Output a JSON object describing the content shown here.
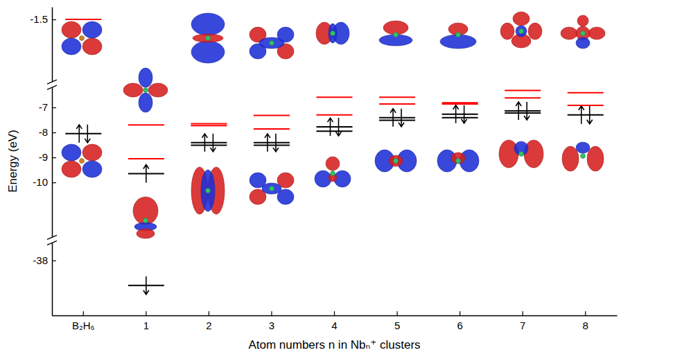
{
  "chart_data": {
    "type": "energy_levels",
    "x_label": "Atom numbers n in Nbₙ⁺ clusters",
    "y_label": "Energy (eV)",
    "categories": [
      "B₂H₆",
      "1",
      "2",
      "3",
      "4",
      "5",
      "6",
      "7",
      "8"
    ],
    "ylim": [
      -40.2,
      -1.0
    ],
    "ybreaks": [
      [
        -37.3,
        -12.2
      ],
      [
        -6.2,
        -4.0
      ]
    ],
    "yticks": [
      -38,
      -10,
      -9,
      -8,
      -7,
      -1.5
    ],
    "series": [
      {
        "color": "#000000",
        "values": [
          [
            -8.05
          ],
          [
            -9.65,
            -39.0
          ],
          [
            -8.41,
            -8.51
          ],
          [
            -8.41,
            -8.51
          ],
          [
            -7.78,
            -7.95
          ],
          [
            -7.41,
            -7.51
          ],
          [
            -7.27,
            -7.41
          ],
          [
            -7.14,
            -7.22
          ],
          [
            -7.3
          ]
        ],
        "spins": [
          [
            [
              0.5,
              -0.5
            ]
          ],
          [
            [
              0.5
            ],
            [
              -0.5
            ]
          ],
          [
            [
              0.5,
              -0.5
            ],
            []
          ],
          [
            [
              0.5,
              -0.5
            ],
            []
          ],
          [
            [
              0.5,
              -0.5
            ],
            []
          ],
          [
            [
              0.5,
              -0.5
            ],
            []
          ],
          [
            [
              0.5,
              -0.5
            ],
            []
          ],
          [
            [
              0.5,
              -0.5
            ],
            []
          ],
          [
            [
              0.5,
              -0.5
            ]
          ]
        ]
      },
      {
        "color": "#ff0000",
        "values": [
          [
            -1.5
          ],
          [
            -7.7,
            -9.05
          ],
          [
            -7.65,
            -7.73
          ],
          [
            -7.32,
            -7.86
          ],
          [
            -6.59,
            -7.3
          ],
          [
            -6.59,
            -6.86
          ],
          [
            -6.81,
            -6.86
          ],
          [
            -6.32,
            -6.62
          ],
          [
            -6.41,
            -6.92
          ]
        ]
      }
    ]
  }
}
